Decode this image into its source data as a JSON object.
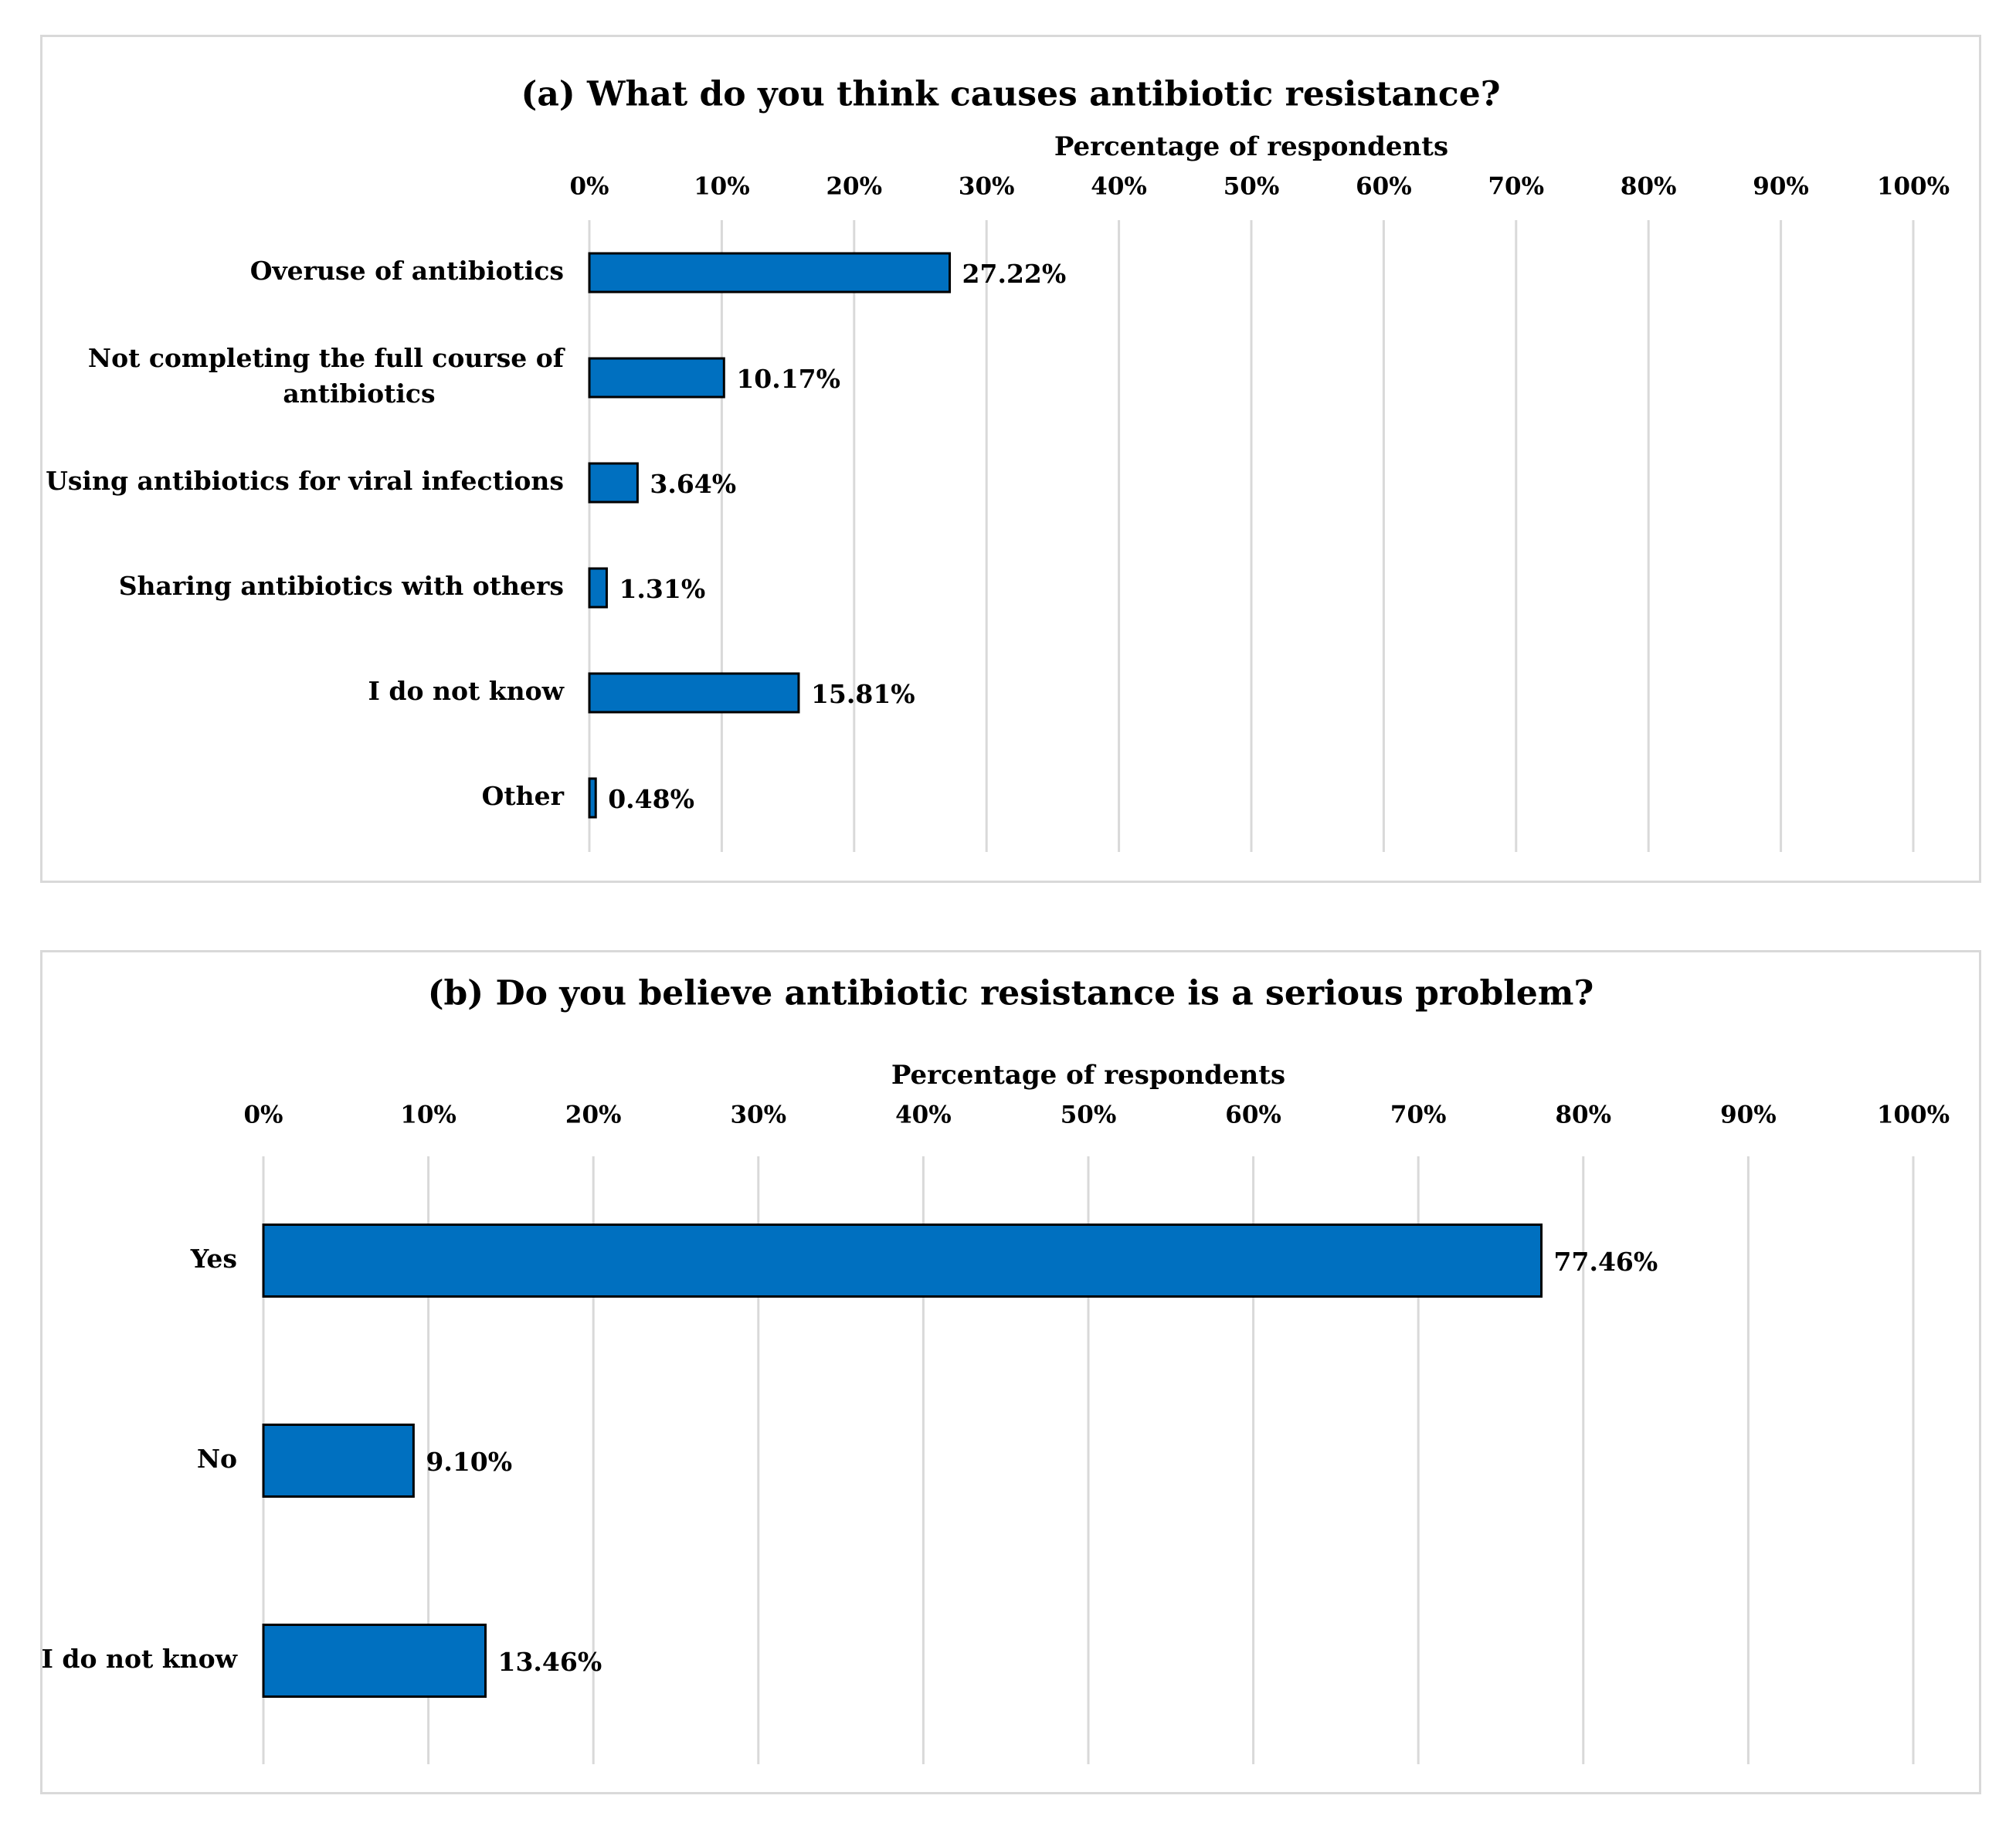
{
  "colors": {
    "bar": "#0070C0",
    "grid": "#D9D9D9",
    "border": "#D9D9D9"
  },
  "chart_data": [
    {
      "type": "bar",
      "orientation": "horizontal",
      "title": "(a) What do you think causes antibiotic resistance?",
      "xlabel": "Percentage of respondents",
      "xlim": [
        0,
        100
      ],
      "ticks": [
        "0%",
        "10%",
        "20%",
        "30%",
        "40%",
        "50%",
        "60%",
        "70%",
        "80%",
        "90%",
        "100%"
      ],
      "categories": [
        [
          "Overuse of antibiotics"
        ],
        [
          "Not completing the full course of",
          "antibiotics"
        ],
        [
          "Using antibiotics for viral infections"
        ],
        [
          "Sharing antibiotics with others"
        ],
        [
          "I do not know"
        ],
        [
          "Other"
        ]
      ],
      "values": [
        27.22,
        10.17,
        3.64,
        1.31,
        15.81,
        0.48
      ],
      "labels": [
        "27.22%",
        "10.17%",
        "3.64%",
        "1.31%",
        "15.81%",
        "0.48%"
      ]
    },
    {
      "type": "bar",
      "orientation": "horizontal",
      "title": "(b) Do you believe antibiotic resistance is a serious problem?",
      "xlabel": "Percentage of respondents",
      "xlim": [
        0,
        100
      ],
      "ticks": [
        "0%",
        "10%",
        "20%",
        "30%",
        "40%",
        "50%",
        "60%",
        "70%",
        "80%",
        "90%",
        "100%"
      ],
      "categories": [
        [
          "Yes"
        ],
        [
          "No"
        ],
        [
          "I do not know"
        ]
      ],
      "values": [
        77.46,
        9.1,
        13.46
      ],
      "labels": [
        "77.46%",
        "9.10%",
        "13.46%"
      ]
    }
  ]
}
